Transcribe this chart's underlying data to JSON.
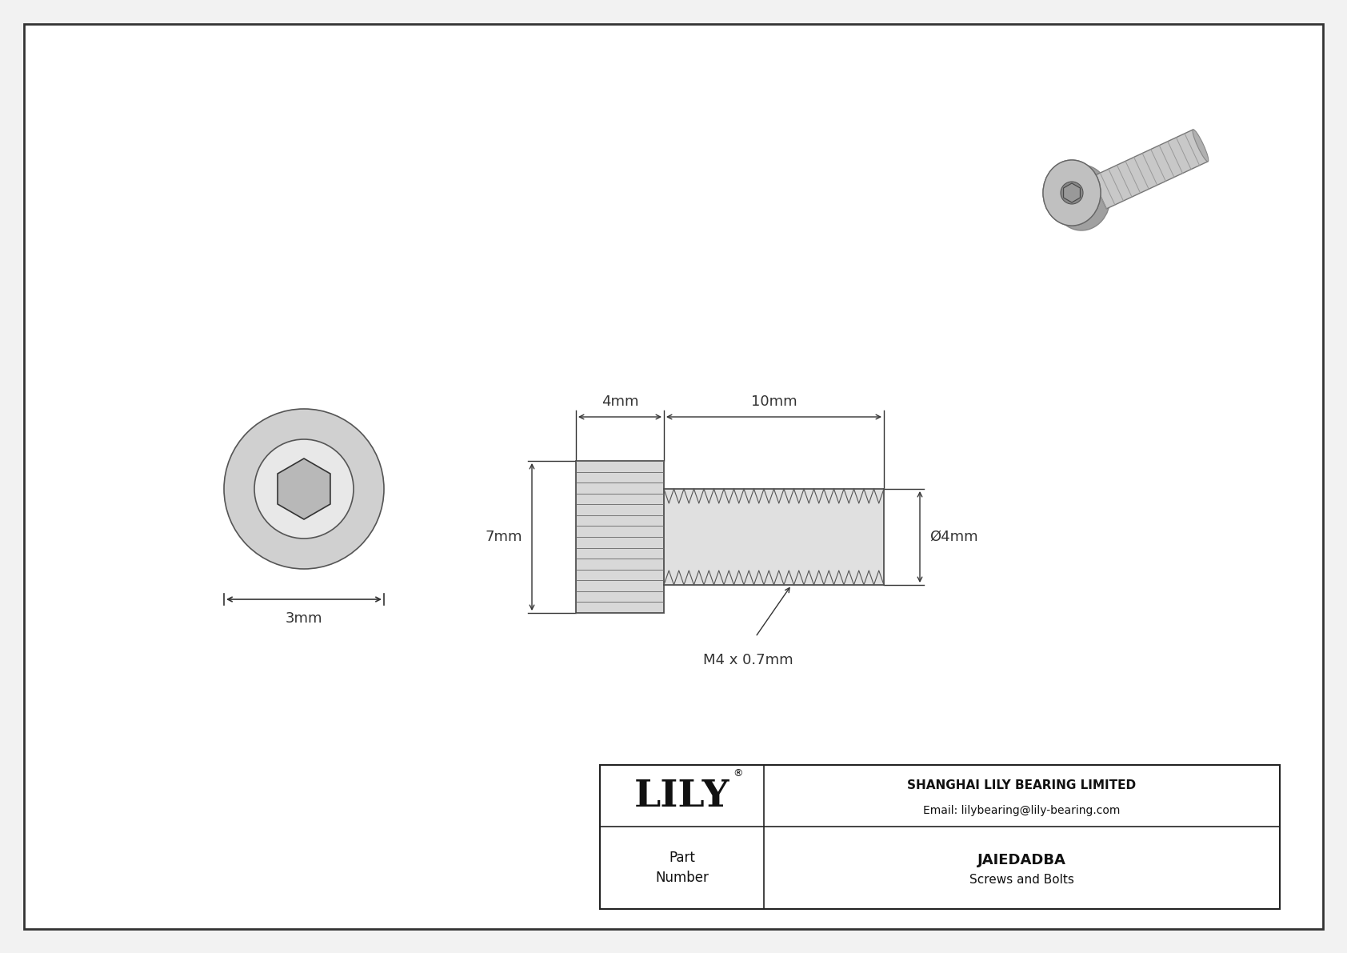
{
  "bg_color": "#f2f2f2",
  "border_color": "#333333",
  "line_color": "#333333",
  "fill_color": "#e8e8e8",
  "company": "SHANGHAI LILY BEARING LIMITED",
  "email": "Email: lilybearing@lily-bearing.com",
  "part_label": "Part\nNumber",
  "part_number": "JAIEDADBA",
  "part_type": "Screws and Bolts",
  "logo_text": "LILY",
  "logo_reg": "®",
  "dim_4mm_head": "4mm",
  "dim_10mm_shaft": "10mm",
  "dim_7mm_height": "7mm",
  "dim_3mm_front": "3mm",
  "dim_dia": "Ø4mm",
  "dim_thread": "M4 x 0.7mm"
}
